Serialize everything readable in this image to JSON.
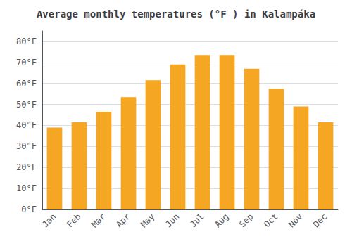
{
  "chart_data": {
    "type": "bar",
    "title": "Average monthly temperatures (°F ) in Kalampáka",
    "categories": [
      "Jan",
      "Feb",
      "Mar",
      "Apr",
      "May",
      "Jun",
      "Jul",
      "Aug",
      "Sep",
      "Oct",
      "Nov",
      "Dec"
    ],
    "values": [
      39,
      41.5,
      46.5,
      53.5,
      61.5,
      69,
      73.5,
      73.5,
      67,
      57.5,
      49,
      41.5
    ],
    "color": "#F5A623",
    "ylim": [
      0,
      85
    ],
    "yticks": [
      {
        "value": 0,
        "label": "0°F"
      },
      {
        "value": 10,
        "label": "10°F"
      },
      {
        "value": 20,
        "label": "20°F"
      },
      {
        "value": 30,
        "label": "30°F"
      },
      {
        "value": 40,
        "label": "40°F"
      },
      {
        "value": 50,
        "label": "50°F"
      },
      {
        "value": 60,
        "label": "60°F"
      },
      {
        "value": 70,
        "label": "70°F"
      },
      {
        "value": 80,
        "label": "80°F"
      }
    ],
    "grid": true
  }
}
